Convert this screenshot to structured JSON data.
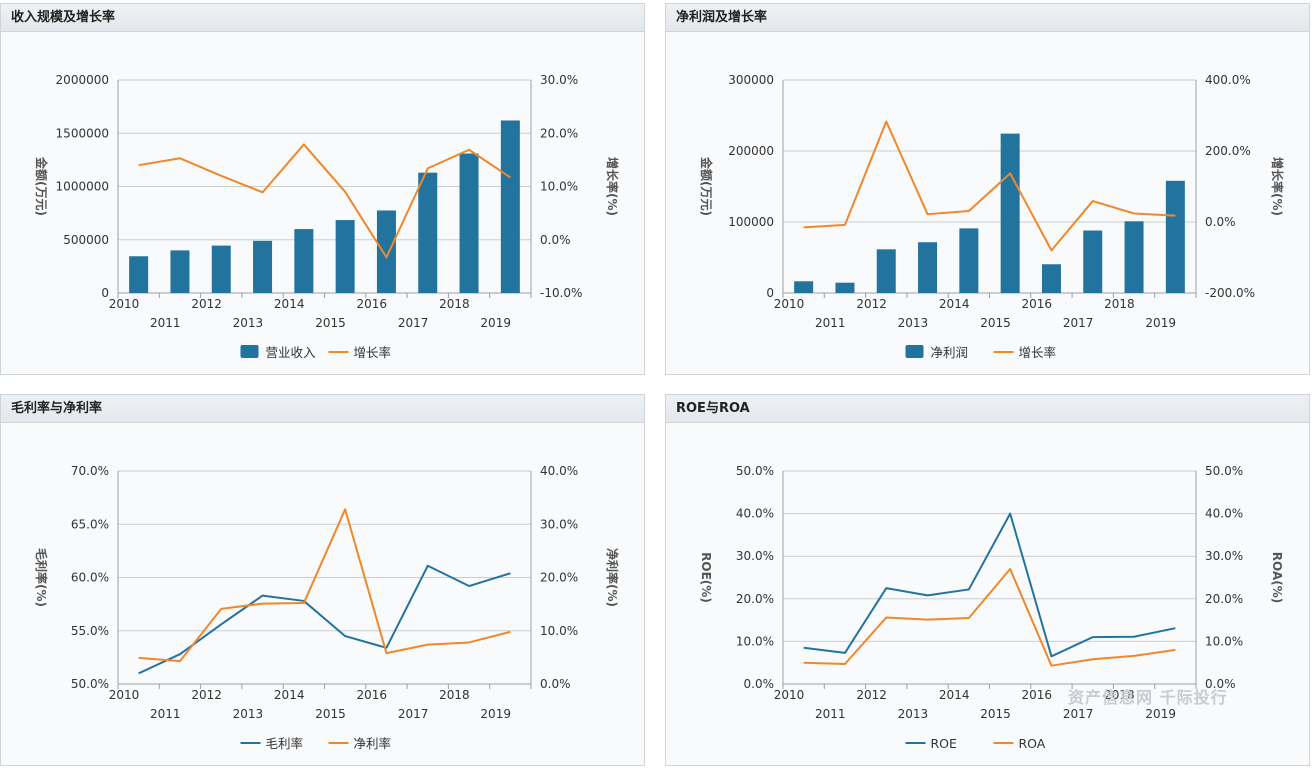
{
  "colors": {
    "bar": "#23739f",
    "line1": "#23739f",
    "line2": "#f0882a"
  },
  "watermark": "资产信息网 千际投行",
  "chart_data": [
    {
      "id": "c1",
      "type": "bar+line",
      "title": "收入规模及增长率",
      "years": [
        "2010",
        "2011",
        "2012",
        "2013",
        "2014",
        "2015",
        "2016",
        "2017",
        "2018",
        "2019"
      ],
      "ylabel": "金额(万元)",
      "y2label": "增长率(%)",
      "ylim": [
        0,
        2000000
      ],
      "yticks": [
        0,
        500000,
        1000000,
        1500000,
        2000000
      ],
      "yticklabels": [
        "0",
        "500000",
        "1000000",
        "1500000",
        "2000000"
      ],
      "y2lim": [
        -10,
        30
      ],
      "y2ticks": [
        -10,
        0,
        10,
        20,
        30
      ],
      "y2ticklabels": [
        "-10.0%",
        "0.0%",
        "10.0%",
        "20.0%",
        "30.0%"
      ],
      "series": [
        {
          "name": "营业收入",
          "kind": "bar",
          "axis": "left",
          "values": [
            345000,
            400000,
            445000,
            490000,
            600000,
            685000,
            775000,
            1130000,
            1310000,
            1620000
          ]
        },
        {
          "name": "增长率",
          "kind": "line",
          "axis": "right",
          "values": [
            14.0,
            15.3,
            12.0,
            8.9,
            17.9,
            9.0,
            -3.3,
            13.4,
            16.9,
            11.7
          ]
        }
      ]
    },
    {
      "id": "c2",
      "type": "bar+line",
      "title": "净利润及增长率",
      "years": [
        "2010",
        "2011",
        "2012",
        "2013",
        "2014",
        "2015",
        "2016",
        "2017",
        "2018",
        "2019"
      ],
      "ylabel": "金额(万元)",
      "y2label": "增长率(%)",
      "ylim": [
        0,
        300000
      ],
      "yticks": [
        0,
        100000,
        200000,
        300000
      ],
      "yticklabels": [
        "0",
        "100000",
        "200000",
        "300000"
      ],
      "y2lim": [
        -200,
        400
      ],
      "y2ticks": [
        -200,
        0,
        200,
        400
      ],
      "y2ticklabels": [
        "-200.0%",
        "0.0%",
        "200.0%",
        "400.0%"
      ],
      "series": [
        {
          "name": "净利润",
          "kind": "bar",
          "axis": "left",
          "values": [
            16500,
            14500,
            61500,
            71500,
            91000,
            224500,
            40500,
            88000,
            101000,
            158000
          ]
        },
        {
          "name": "增长率",
          "kind": "line",
          "axis": "right",
          "values": [
            -15,
            -8,
            283,
            22,
            31,
            137,
            -80,
            59,
            24,
            18
          ]
        }
      ]
    },
    {
      "id": "c3",
      "type": "line",
      "title": "毛利率与净利率",
      "years": [
        "2010",
        "2011",
        "2012",
        "2013",
        "2014",
        "2015",
        "2016",
        "2017",
        "2018",
        "2019"
      ],
      "ylabel": "毛利率(%)",
      "y2label": "净利率(%)",
      "ylim": [
        50,
        70
      ],
      "yticks": [
        50,
        55,
        60,
        65,
        70
      ],
      "yticklabels": [
        "50.0%",
        "55.0%",
        "60.0%",
        "65.0%",
        "70.0%"
      ],
      "y2lim": [
        0,
        40
      ],
      "y2ticks": [
        0,
        10,
        20,
        30,
        40
      ],
      "y2ticklabels": [
        "0.0%",
        "10.0%",
        "20.0%",
        "30.0%",
        "40.0%"
      ],
      "series": [
        {
          "name": "毛利率",
          "kind": "line",
          "axis": "left",
          "values": [
            51.0,
            52.8,
            55.6,
            58.3,
            57.8,
            54.5,
            53.4,
            61.1,
            59.2,
            60.4
          ]
        },
        {
          "name": "净利率",
          "kind": "line",
          "axis": "right",
          "values": [
            4.9,
            4.3,
            14.1,
            15.1,
            15.2,
            32.8,
            5.8,
            7.4,
            7.8,
            9.8
          ]
        }
      ]
    },
    {
      "id": "c4",
      "type": "line",
      "title": "ROE与ROA",
      "years": [
        "2010",
        "2011",
        "2012",
        "2013",
        "2014",
        "2015",
        "2016",
        "2017",
        "2018",
        "2019"
      ],
      "ylabel": "ROE(%)",
      "y2label": "ROA(%)",
      "ylim": [
        0,
        50
      ],
      "yticks": [
        0,
        10,
        20,
        30,
        40,
        50
      ],
      "yticklabels": [
        "0.0%",
        "10.0%",
        "20.0%",
        "30.0%",
        "40.0%",
        "50.0%"
      ],
      "y2lim": [
        0,
        50
      ],
      "y2ticks": [
        0,
        10,
        20,
        30,
        40,
        50
      ],
      "y2ticklabels": [
        "0.0%",
        "10.0%",
        "20.0%",
        "30.0%",
        "40.0%",
        "50.0%"
      ],
      "series": [
        {
          "name": "ROE",
          "kind": "line",
          "axis": "left",
          "values": [
            8.5,
            7.3,
            22.5,
            20.8,
            22.2,
            40.0,
            6.5,
            11.0,
            11.1,
            13.1
          ]
        },
        {
          "name": "ROA",
          "kind": "line",
          "axis": "right",
          "values": [
            5.0,
            4.7,
            15.6,
            15.1,
            15.5,
            27.0,
            4.3,
            5.8,
            6.6,
            8.0
          ]
        }
      ]
    }
  ]
}
